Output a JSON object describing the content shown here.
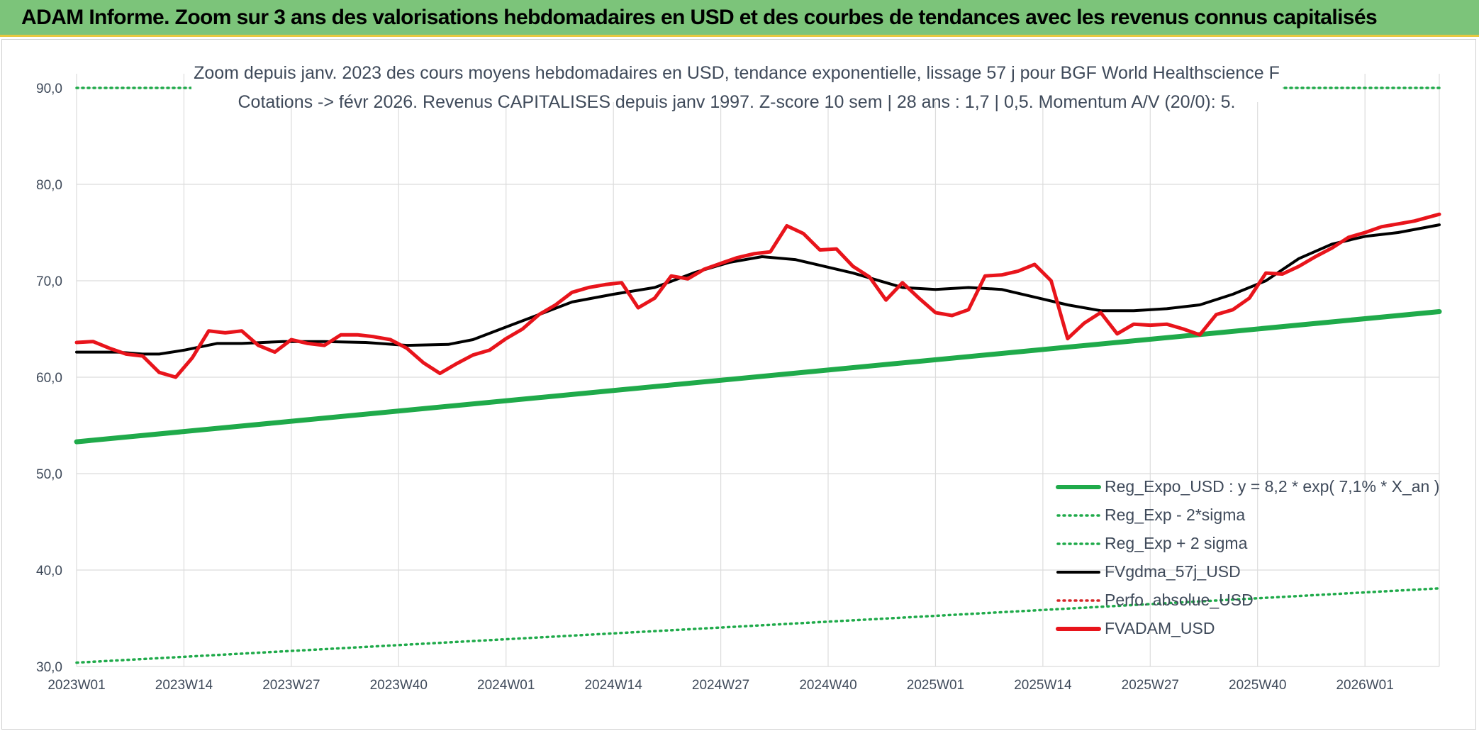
{
  "banner": {
    "title": "ADAM Informe. Zoom sur 3 ans des valorisations hebdomadaires en USD et des courbes de tendances avec les revenus connus capitalisés"
  },
  "colors": {
    "banner_bg": "#7cc47a",
    "reg_expo": "#1faa4a",
    "sigma": "#1faa4a",
    "gdma": "#000000",
    "perfo": "#d62728",
    "adam": "#e8141b",
    "grid": "#dcdcdc"
  },
  "chart_data": {
    "type": "line",
    "title_line1": "Zoom depuis janv. 2023 des cours moyens hebdomadaires en USD, tendance exponentielle, lissage 57 j pour BGF World Healthscience F",
    "title_line2": "Cotations -> févr 2026. Revenus CAPITALISES depuis janv 1997. Z-score 10 sem | 28 ans : 1,7 | 0,5. Momentum A/V (20/0): 5.",
    "ylim": [
      30,
      90
    ],
    "yticks": [
      "30,0",
      "40,0",
      "50,0",
      "60,0",
      "70,0",
      "80,0",
      "90,0"
    ],
    "xticks": [
      "2023W01",
      "2023W14",
      "2023W27",
      "2023W40",
      "2024W01",
      "2024W14",
      "2024W27",
      "2024W40",
      "2025W01",
      "2025W14",
      "2025W27",
      "2025W40",
      "2026W01"
    ],
    "weeks_total": 166,
    "grid": true,
    "legend_position": "bottom-right",
    "legend": [
      {
        "name": "Reg_Expo_USD : y = 8,2 * exp( 7,1% *  X_an )",
        "style": "solid-thick",
        "color": "#1faa4a"
      },
      {
        "name": "Reg_Exp - 2*sigma",
        "style": "dotted",
        "color": "#1faa4a"
      },
      {
        "name": "Reg_Exp + 2 sigma",
        "style": "dotted",
        "color": "#1faa4a"
      },
      {
        "name": "FVgdma_57j_USD",
        "style": "solid",
        "color": "#000000"
      },
      {
        "name": "Perfo. absolue_USD",
        "style": "dotted",
        "color": "#d62728"
      },
      {
        "name": "FVADAM_USD",
        "style": "solid-thick",
        "color": "#e8141b"
      }
    ],
    "series": [
      {
        "name": "Reg_Expo_USD : y = 8,2 * exp( 7,1% *  X_an )",
        "x": [
          0,
          165
        ],
        "values": [
          53.3,
          66.8
        ]
      },
      {
        "name": "Reg_Exp - 2*sigma",
        "x": [
          0,
          165
        ],
        "values": [
          30.4,
          38.1
        ]
      },
      {
        "name": "Reg_Exp + 2 sigma",
        "x": [
          0,
          165
        ],
        "values": [
          90.0,
          90.0
        ]
      },
      {
        "name": "FVgdma_57j_USD",
        "x": [
          0,
          5,
          8,
          10,
          13,
          17,
          20,
          25,
          30,
          35,
          40,
          45,
          48,
          52,
          56,
          60,
          65,
          70,
          75,
          79,
          83,
          87,
          90,
          94,
          98,
          100,
          104,
          108,
          112,
          116,
          120,
          124,
          128,
          132,
          136,
          140,
          144,
          148,
          152,
          156,
          160,
          165
        ],
        "values": [
          62.6,
          62.6,
          62.4,
          62.4,
          62.8,
          63.5,
          63.5,
          63.7,
          63.7,
          63.6,
          63.3,
          63.4,
          63.9,
          65.2,
          66.5,
          67.8,
          68.6,
          69.3,
          70.9,
          71.9,
          72.5,
          72.2,
          71.6,
          70.8,
          69.8,
          69.3,
          69.1,
          69.3,
          69.1,
          68.3,
          67.5,
          66.9,
          66.9,
          67.1,
          67.5,
          68.6,
          70.0,
          72.3,
          73.8,
          74.6,
          75.0,
          75.8
        ]
      },
      {
        "name": "FVADAM_USD",
        "x": [
          0,
          2,
          4,
          6,
          8,
          10,
          12,
          14,
          16,
          18,
          20,
          22,
          24,
          26,
          28,
          30,
          32,
          34,
          36,
          38,
          40,
          42,
          44,
          46,
          48,
          50,
          52,
          54,
          56,
          58,
          60,
          62,
          64,
          66,
          68,
          70,
          72,
          74,
          76,
          78,
          80,
          82,
          84,
          86,
          88,
          90,
          92,
          94,
          96,
          98,
          100,
          102,
          104,
          106,
          108,
          110,
          112,
          114,
          116,
          118,
          120,
          122,
          124,
          126,
          128,
          130,
          132,
          134,
          136,
          138,
          140,
          142,
          144,
          146,
          148,
          150,
          152,
          154,
          156,
          158,
          160,
          162,
          165
        ],
        "values": [
          63.6,
          63.7,
          63.0,
          62.4,
          62.2,
          60.5,
          60.0,
          62.0,
          64.8,
          64.6,
          64.8,
          63.3,
          62.6,
          63.9,
          63.5,
          63.3,
          64.4,
          64.4,
          64.2,
          63.9,
          63.0,
          61.5,
          60.4,
          61.4,
          62.3,
          62.8,
          64.0,
          65.0,
          66.5,
          67.5,
          68.8,
          69.3,
          69.6,
          69.8,
          67.2,
          68.2,
          70.5,
          70.2,
          71.2,
          71.8,
          72.4,
          72.8,
          73.0,
          75.7,
          74.9,
          73.2,
          73.3,
          71.5,
          70.4,
          68.0,
          69.8,
          68.2,
          66.7,
          66.4,
          67.0,
          70.5,
          70.6,
          71.0,
          71.7,
          70.0,
          64.0,
          65.6,
          66.7,
          64.5,
          65.5,
          65.4,
          65.5,
          65.0,
          64.4,
          66.5,
          67.0,
          68.2,
          70.8,
          70.7,
          71.5,
          72.5,
          73.4,
          74.5,
          75.0,
          75.6,
          75.9,
          76.2,
          76.9
        ]
      }
    ]
  }
}
